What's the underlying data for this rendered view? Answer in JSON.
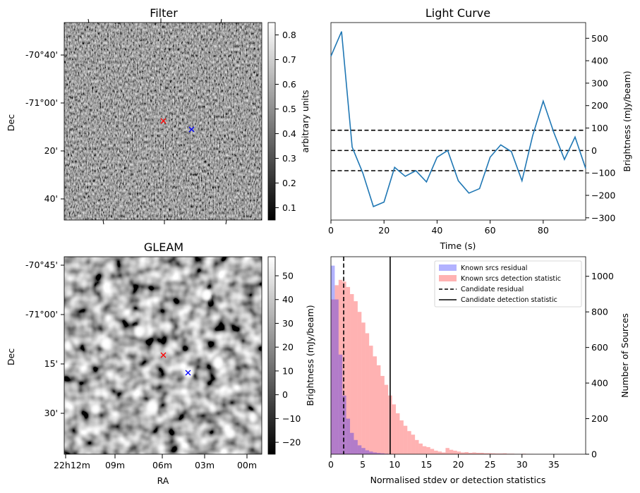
{
  "chart_data": [
    {
      "type": "image",
      "title": "Filter",
      "ylabel": "Dec",
      "yticks": [
        "-70°40'",
        "-71°00'",
        "20'",
        "40'"
      ],
      "colorbar": {
        "label": "arbitrary units",
        "range": [
          0.05,
          0.85
        ],
        "ticks": [
          "0.1",
          "0.2",
          "0.3",
          "0.4",
          "0.5",
          "0.6",
          "0.7",
          "0.8"
        ],
        "tick_values": [
          0.1,
          0.2,
          0.3,
          0.4,
          0.5,
          0.6,
          0.7,
          0.8
        ]
      },
      "markers": [
        {
          "name": "candidate-red",
          "color": "#ff0000"
        },
        {
          "name": "candidate-blue",
          "color": "#0000ff"
        }
      ]
    },
    {
      "type": "line",
      "title": "Light Curve",
      "xlabel": "Time (s)",
      "ylabel": "Brightness (mJy/beam)",
      "xlim": [
        0,
        96
      ],
      "ylim": [
        -310,
        570
      ],
      "xticks": [
        0,
        20,
        40,
        60,
        80
      ],
      "yticks": [
        -300,
        -200,
        -100,
        0,
        100,
        200,
        300,
        400,
        500
      ],
      "x": [
        0,
        4,
        8,
        12,
        16,
        20,
        24,
        28,
        32,
        36,
        40,
        44,
        48,
        52,
        56,
        60,
        64,
        68,
        72,
        76,
        80,
        84,
        88,
        92,
        96
      ],
      "y": [
        420,
        530,
        15,
        -100,
        -250,
        -230,
        -75,
        -115,
        -90,
        -140,
        -30,
        0,
        -135,
        -190,
        -170,
        -30,
        25,
        -5,
        -135,
        65,
        220,
        80,
        -40,
        60,
        -80
      ],
      "hlines": [
        90,
        0,
        -90
      ],
      "line_color": "#1f77b4"
    },
    {
      "type": "image",
      "title": "GLEAM",
      "xlabel": "RA",
      "ylabel": "Dec",
      "xticks": [
        "22h12m",
        "09m",
        "06m",
        "03m",
        "00m"
      ],
      "yticks": [
        "-70°45'",
        "-71°00'",
        "15'",
        "30'"
      ],
      "colorbar": {
        "label": "Brightness (mJy/beam)",
        "range": [
          -25,
          58
        ],
        "ticks": [
          "−20",
          "−10",
          "0",
          "10",
          "20",
          "30",
          "40",
          "50"
        ],
        "tick_values": [
          -20,
          -10,
          0,
          10,
          20,
          30,
          40,
          50
        ]
      },
      "markers": [
        {
          "name": "candidate-red",
          "color": "#ff0000"
        },
        {
          "name": "candidate-blue",
          "color": "#0000ff"
        }
      ]
    },
    {
      "type": "histogram",
      "xlabel": "Normalised stdev or detection statistics",
      "ylabel": "Number of Sources",
      "xlim": [
        0,
        40
      ],
      "ylim": [
        0,
        1110
      ],
      "xticks": [
        0,
        5,
        10,
        15,
        20,
        25,
        30,
        35
      ],
      "yticks": [
        0,
        200,
        400,
        600,
        800,
        1000
      ],
      "bin_width": 0.6,
      "series": [
        {
          "name": "Known srcs residual",
          "color": "#0000ff",
          "alpha": 0.3,
          "counts": [
            1060,
            870,
            560,
            330,
            200,
            120,
            80,
            50,
            35,
            22,
            15,
            10,
            7,
            5,
            3,
            2,
            1
          ]
        },
        {
          "name": "Known srcs detection statistic",
          "color": "#ff0000",
          "alpha": 0.3,
          "counts": [
            870,
            950,
            980,
            970,
            940,
            900,
            860,
            800,
            740,
            680,
            610,
            550,
            500,
            440,
            390,
            330,
            280,
            230,
            190,
            160,
            130,
            110,
            80,
            60,
            45,
            40,
            30,
            20,
            15,
            10,
            35,
            25,
            20,
            15,
            10,
            12,
            8,
            10,
            8,
            8,
            6,
            6,
            5,
            4,
            4,
            5,
            3,
            3,
            2,
            2,
            3,
            2,
            2,
            1,
            1,
            1,
            1,
            1,
            1,
            1,
            1,
            1,
            1,
            1,
            1,
            1
          ]
        }
      ],
      "vlines": [
        {
          "name": "Candidate residual",
          "x": 2.0,
          "style": "dashed"
        },
        {
          "name": "Candidate detection statistic",
          "x": 9.3,
          "style": "solid"
        }
      ],
      "legend": "top-right"
    }
  ]
}
